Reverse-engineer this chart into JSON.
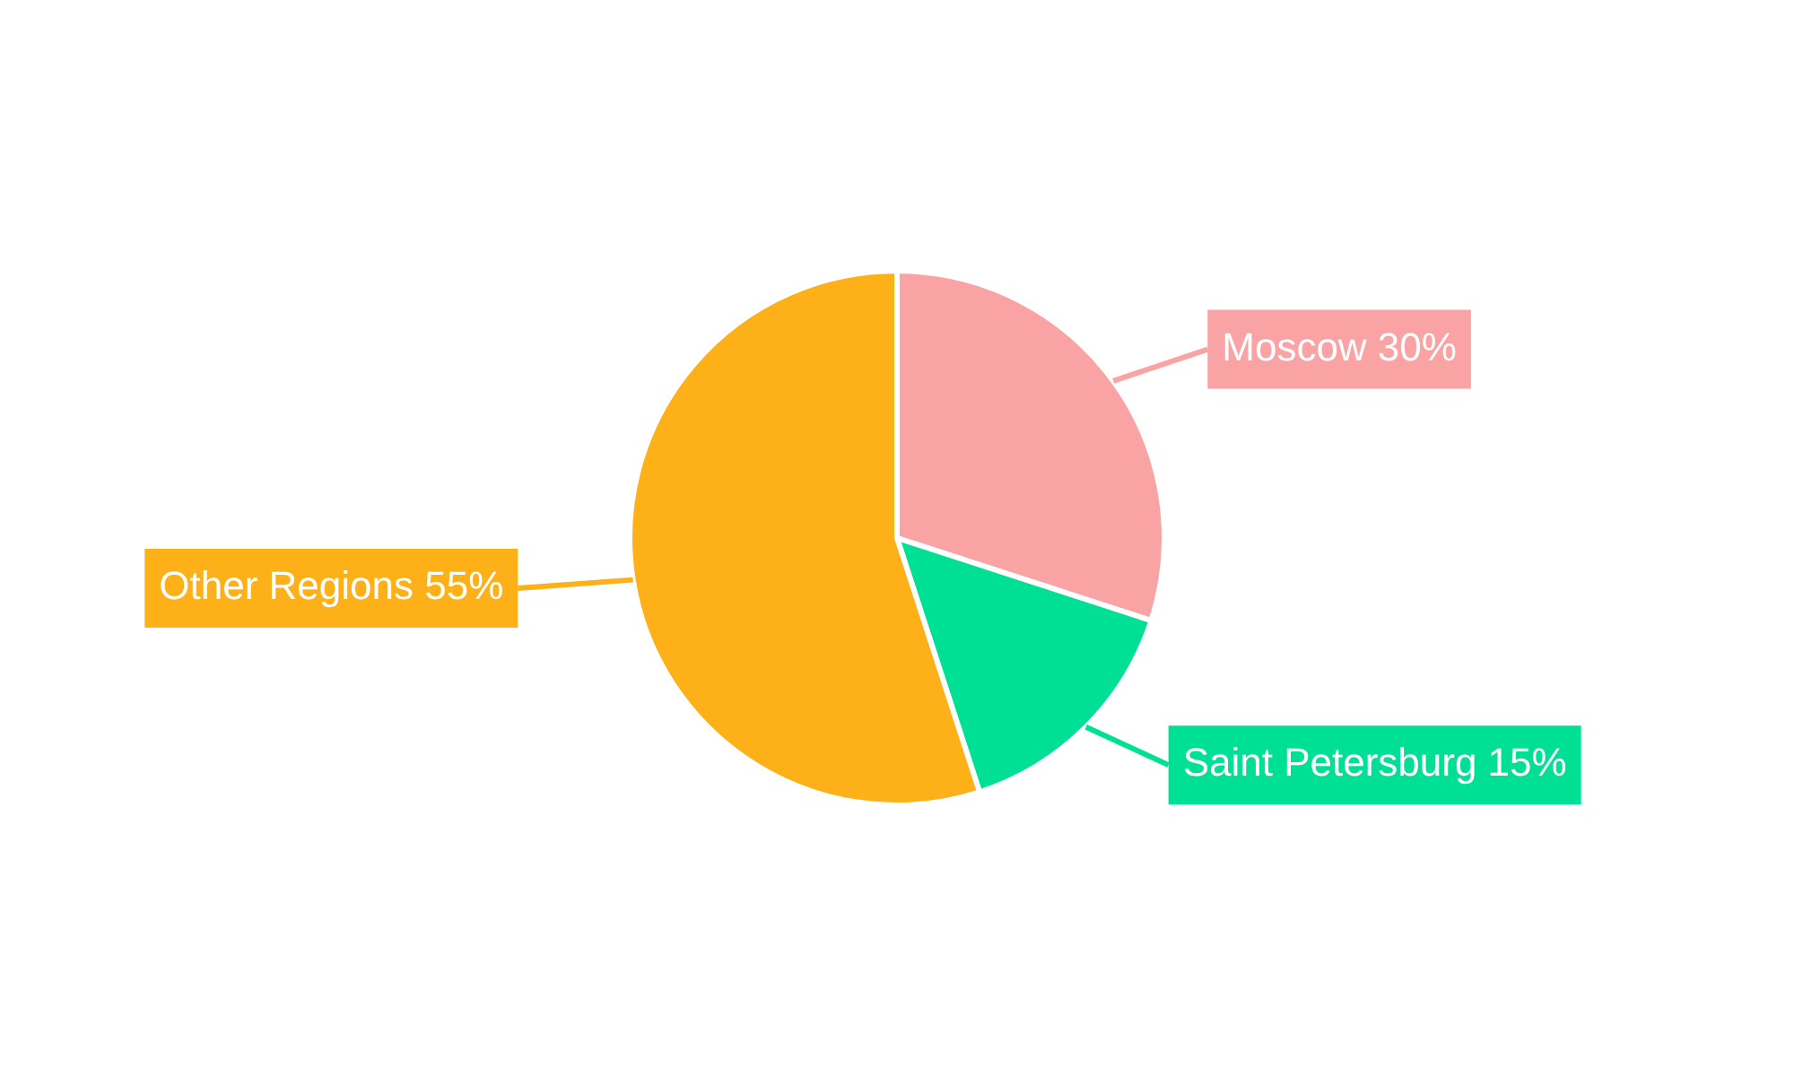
{
  "chart_data": {
    "type": "pie",
    "categories": [
      "Moscow",
      "Saint Petersburg",
      "Other Regions"
    ],
    "values": [
      30,
      15,
      55
    ],
    "colors": [
      "#f9a3a4",
      "#00e095",
      "#feb019"
    ],
    "value_labels": [
      "30%",
      "15%",
      "55%"
    ],
    "legend": false
  }
}
